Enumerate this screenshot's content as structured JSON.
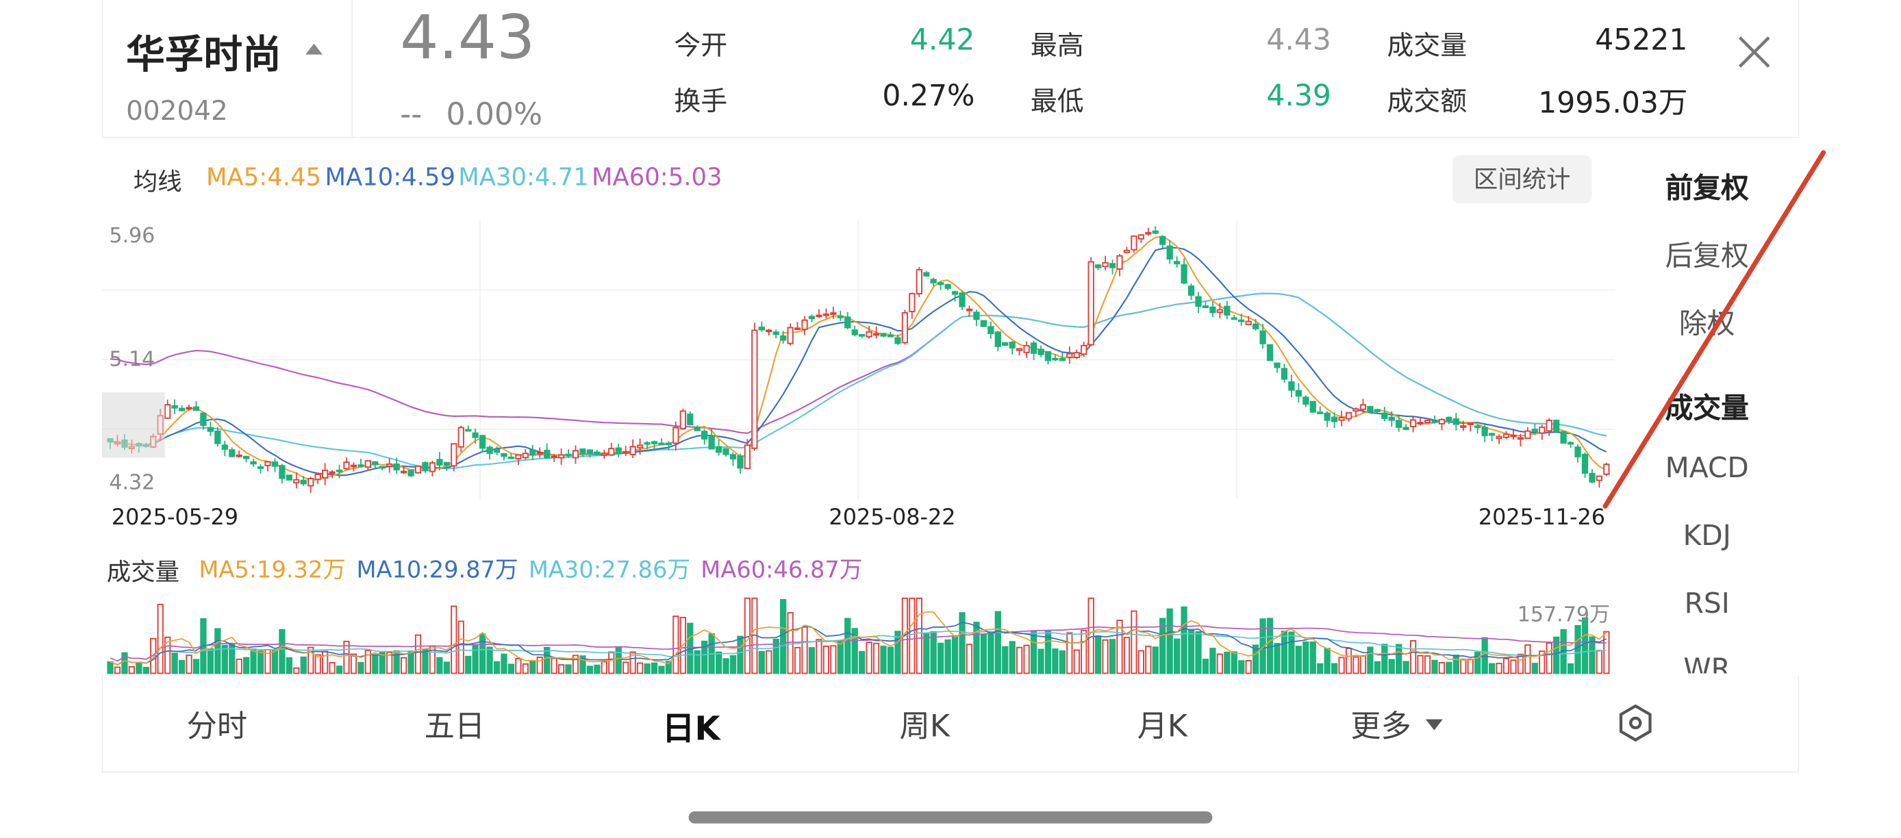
{
  "stock": {
    "name": "华孚时尚",
    "code": "002042",
    "price": "4.43",
    "change": "--",
    "change_pct": "0.00%"
  },
  "quote": {
    "open_label": "今开",
    "open": "4.42",
    "turnover_label": "换手",
    "turnover": "0.27%",
    "high_label": "最高",
    "high": "4.43",
    "low_label": "最低",
    "low": "4.39",
    "volume_label": "成交量",
    "volume": "45221",
    "amount_label": "成交额",
    "amount": "1995.03万"
  },
  "ma_legend": {
    "title": "均线",
    "ma5": "MA5:4.45",
    "ma10": "MA10:4.59",
    "ma30": "MA30:4.71",
    "ma60": "MA60:5.03"
  },
  "vol_legend": {
    "title": "成交量",
    "ma5": "MA5:19.32万",
    "ma10": "MA10:29.87万",
    "ma30": "MA30:27.86万",
    "ma60": "MA60:46.87万"
  },
  "range_button": "区间统计",
  "side_menu": {
    "adjust": [
      "前复权",
      "后复权",
      "除权"
    ],
    "indicators": [
      "成交量",
      "MACD",
      "KDJ",
      "RSI",
      "WR"
    ]
  },
  "tabs": [
    "分时",
    "五日",
    "日K",
    "周K",
    "月K",
    "更多"
  ],
  "colors": {
    "up": "#e0413c",
    "down": "#1bb27b",
    "ma5": "#f0a030",
    "ma10": "#3a6fc4",
    "ma30": "#5ec6d8",
    "ma60": "#b85cc0"
  },
  "icons": {
    "close": "close-icon",
    "settings": "hexagon-settings-icon",
    "more": "caret-down-icon"
  },
  "chart_data": {
    "type": "candlestick",
    "y_ticks": [
      "5.96",
      "5.14",
      "4.32"
    ],
    "ylim": [
      4.2,
      6.05
    ],
    "x_ticks": [
      "2025-05-29",
      "2025-08-22",
      "2025-11-26"
    ],
    "vol_max_label": "157.79万",
    "vol_max": 157.79,
    "keyframes": [
      [
        0,
        4.58
      ],
      [
        5,
        4.55
      ],
      [
        8,
        4.82
      ],
      [
        12,
        4.78
      ],
      [
        16,
        4.52
      ],
      [
        22,
        4.42
      ],
      [
        26,
        4.3
      ],
      [
        30,
        4.38
      ],
      [
        36,
        4.45
      ],
      [
        42,
        4.38
      ],
      [
        47,
        4.44
      ],
      [
        49,
        4.68
      ],
      [
        53,
        4.52
      ],
      [
        60,
        4.48
      ],
      [
        70,
        4.52
      ],
      [
        78,
        4.55
      ],
      [
        80,
        4.78
      ],
      [
        84,
        4.55
      ],
      [
        88,
        4.42
      ],
      [
        89,
        4.53
      ],
      [
        90,
        5.35
      ],
      [
        94,
        5.28
      ],
      [
        100,
        5.45
      ],
      [
        104,
        5.32
      ],
      [
        110,
        5.25
      ],
      [
        113,
        5.75
      ],
      [
        117,
        5.58
      ],
      [
        121,
        5.42
      ],
      [
        124,
        5.24
      ],
      [
        130,
        5.18
      ],
      [
        132,
        5.12
      ],
      [
        136,
        5.22
      ],
      [
        137,
        5.78
      ],
      [
        140,
        5.74
      ],
      [
        143,
        5.92
      ],
      [
        146,
        5.98
      ],
      [
        148,
        5.82
      ],
      [
        152,
        5.5
      ],
      [
        155,
        5.45
      ],
      [
        160,
        5.33
      ],
      [
        163,
        5.05
      ],
      [
        166,
        4.86
      ],
      [
        170,
        4.7
      ],
      [
        175,
        4.8
      ],
      [
        180,
        4.68
      ],
      [
        185,
        4.72
      ],
      [
        190,
        4.68
      ],
      [
        195,
        4.6
      ],
      [
        198,
        4.64
      ],
      [
        201,
        4.72
      ],
      [
        205,
        4.48
      ],
      [
        207,
        4.32
      ],
      [
        209,
        4.42
      ]
    ]
  }
}
